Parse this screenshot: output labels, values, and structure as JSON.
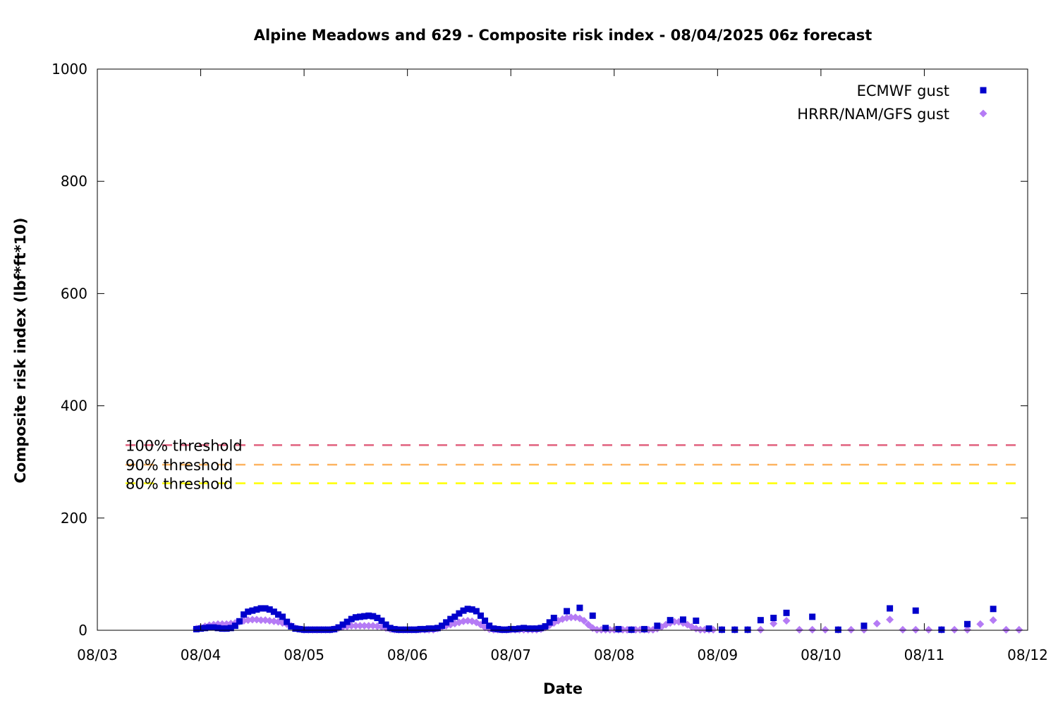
{
  "chart_data": {
    "type": "scatter",
    "title": "Alpine Meadows and 629 - Composite risk index - 08/04/2025 06z forecast",
    "xlabel": "Date",
    "ylabel": "Composite risk index (lbf*ft*10)",
    "x_ticks": [
      "08/03",
      "08/04",
      "08/05",
      "08/06",
      "08/07",
      "08/08",
      "08/09",
      "08/10",
      "08/11",
      "08/12"
    ],
    "xlim": [
      "2025-08-03T00:00",
      "2025-08-12T00:00"
    ],
    "ylim": [
      0,
      1000
    ],
    "y_ticks": [
      0,
      200,
      400,
      600,
      800,
      1000
    ],
    "legend_position": "top-right",
    "grid": false,
    "thresholds": [
      {
        "label": "100% threshold",
        "value": 330,
        "color": "#e0607e"
      },
      {
        "label": "90% threshold",
        "value": 295,
        "color": "#fdb462"
      },
      {
        "label": "80% threshold",
        "value": 262,
        "color": "#ffff00"
      }
    ],
    "series": [
      {
        "name": "ECMWF gust",
        "marker": "square",
        "color": "#0000cc",
        "points": [
          [
            "2025-08-03T23:00",
            2
          ],
          [
            "2025-08-04T00:00",
            3
          ],
          [
            "2025-08-04T01:00",
            4
          ],
          [
            "2025-08-04T02:00",
            5
          ],
          [
            "2025-08-04T03:00",
            5
          ],
          [
            "2025-08-04T04:00",
            4
          ],
          [
            "2025-08-04T05:00",
            3
          ],
          [
            "2025-08-04T06:00",
            3
          ],
          [
            "2025-08-04T07:00",
            4
          ],
          [
            "2025-08-04T08:00",
            8
          ],
          [
            "2025-08-04T09:00",
            16
          ],
          [
            "2025-08-04T10:00",
            28
          ],
          [
            "2025-08-04T11:00",
            33
          ],
          [
            "2025-08-04T12:00",
            35
          ],
          [
            "2025-08-04T13:00",
            37
          ],
          [
            "2025-08-04T14:00",
            39
          ],
          [
            "2025-08-04T15:00",
            39
          ],
          [
            "2025-08-04T16:00",
            37
          ],
          [
            "2025-08-04T17:00",
            33
          ],
          [
            "2025-08-04T18:00",
            28
          ],
          [
            "2025-08-04T19:00",
            24
          ],
          [
            "2025-08-04T20:00",
            15
          ],
          [
            "2025-08-04T21:00",
            7
          ],
          [
            "2025-08-04T22:00",
            3
          ],
          [
            "2025-08-04T23:00",
            2
          ],
          [
            "2025-08-05T00:00",
            1
          ],
          [
            "2025-08-05T01:00",
            1
          ],
          [
            "2025-08-05T02:00",
            1
          ],
          [
            "2025-08-05T03:00",
            1
          ],
          [
            "2025-08-05T04:00",
            1
          ],
          [
            "2025-08-05T05:00",
            1
          ],
          [
            "2025-08-05T06:00",
            1
          ],
          [
            "2025-08-05T07:00",
            2
          ],
          [
            "2025-08-05T08:00",
            5
          ],
          [
            "2025-08-05T09:00",
            10
          ],
          [
            "2025-08-05T10:00",
            15
          ],
          [
            "2025-08-05T11:00",
            20
          ],
          [
            "2025-08-05T12:00",
            23
          ],
          [
            "2025-08-05T13:00",
            24
          ],
          [
            "2025-08-05T14:00",
            25
          ],
          [
            "2025-08-05T15:00",
            26
          ],
          [
            "2025-08-05T16:00",
            25
          ],
          [
            "2025-08-05T17:00",
            22
          ],
          [
            "2025-08-05T18:00",
            17
          ],
          [
            "2025-08-05T19:00",
            10
          ],
          [
            "2025-08-05T20:00",
            4
          ],
          [
            "2025-08-05T21:00",
            2
          ],
          [
            "2025-08-05T22:00",
            1
          ],
          [
            "2025-08-05T23:00",
            1
          ],
          [
            "2025-08-06T00:00",
            1
          ],
          [
            "2025-08-06T01:00",
            1
          ],
          [
            "2025-08-06T02:00",
            1
          ],
          [
            "2025-08-06T03:00",
            2
          ],
          [
            "2025-08-06T04:00",
            2
          ],
          [
            "2025-08-06T05:00",
            3
          ],
          [
            "2025-08-06T06:00",
            3
          ],
          [
            "2025-08-06T07:00",
            4
          ],
          [
            "2025-08-06T08:00",
            8
          ],
          [
            "2025-08-06T09:00",
            14
          ],
          [
            "2025-08-06T10:00",
            20
          ],
          [
            "2025-08-06T11:00",
            24
          ],
          [
            "2025-08-06T12:00",
            30
          ],
          [
            "2025-08-06T13:00",
            35
          ],
          [
            "2025-08-06T14:00",
            38
          ],
          [
            "2025-08-06T15:00",
            37
          ],
          [
            "2025-08-06T16:00",
            34
          ],
          [
            "2025-08-06T17:00",
            26
          ],
          [
            "2025-08-06T18:00",
            17
          ],
          [
            "2025-08-06T19:00",
            8
          ],
          [
            "2025-08-06T20:00",
            3
          ],
          [
            "2025-08-06T21:00",
            2
          ],
          [
            "2025-08-06T22:00",
            1
          ],
          [
            "2025-08-06T23:00",
            1
          ],
          [
            "2025-08-07T00:00",
            2
          ],
          [
            "2025-08-07T01:00",
            2
          ],
          [
            "2025-08-07T02:00",
            3
          ],
          [
            "2025-08-07T03:00",
            4
          ],
          [
            "2025-08-07T04:00",
            3
          ],
          [
            "2025-08-07T05:00",
            3
          ],
          [
            "2025-08-07T06:00",
            3
          ],
          [
            "2025-08-07T07:00",
            4
          ],
          [
            "2025-08-07T08:00",
            7
          ],
          [
            "2025-08-07T09:00",
            14
          ],
          [
            "2025-08-07T10:00",
            22
          ],
          [
            "2025-08-07T13:00",
            34
          ],
          [
            "2025-08-07T16:00",
            40
          ],
          [
            "2025-08-07T19:00",
            26
          ],
          [
            "2025-08-07T22:00",
            4
          ],
          [
            "2025-08-08T01:00",
            2
          ],
          [
            "2025-08-08T04:00",
            1
          ],
          [
            "2025-08-08T07:00",
            2
          ],
          [
            "2025-08-08T10:00",
            8
          ],
          [
            "2025-08-08T13:00",
            18
          ],
          [
            "2025-08-08T16:00",
            19
          ],
          [
            "2025-08-08T19:00",
            17
          ],
          [
            "2025-08-08T22:00",
            3
          ],
          [
            "2025-08-09T01:00",
            1
          ],
          [
            "2025-08-09T04:00",
            1
          ],
          [
            "2025-08-09T07:00",
            1
          ],
          [
            "2025-08-09T10:00",
            18
          ],
          [
            "2025-08-09T13:00",
            22
          ],
          [
            "2025-08-09T16:00",
            31
          ],
          [
            "2025-08-09T22:00",
            24
          ],
          [
            "2025-08-10T04:00",
            1
          ],
          [
            "2025-08-10T10:00",
            8
          ],
          [
            "2025-08-10T16:00",
            39
          ],
          [
            "2025-08-10T22:00",
            35
          ],
          [
            "2025-08-11T04:00",
            1
          ],
          [
            "2025-08-11T10:00",
            11
          ],
          [
            "2025-08-11T16:00",
            38
          ]
        ]
      },
      {
        "name": "HRRR/NAM/GFS gust",
        "marker": "diamond",
        "color": "#b57bf5",
        "points": [
          [
            "2025-08-03T23:00",
            3
          ],
          [
            "2025-08-04T00:00",
            5
          ],
          [
            "2025-08-04T01:00",
            7
          ],
          [
            "2025-08-04T02:00",
            9
          ],
          [
            "2025-08-04T03:00",
            10
          ],
          [
            "2025-08-04T04:00",
            11
          ],
          [
            "2025-08-04T05:00",
            11
          ],
          [
            "2025-08-04T06:00",
            11
          ],
          [
            "2025-08-04T07:00",
            12
          ],
          [
            "2025-08-04T08:00",
            13
          ],
          [
            "2025-08-04T09:00",
            15
          ],
          [
            "2025-08-04T10:00",
            17
          ],
          [
            "2025-08-04T11:00",
            18
          ],
          [
            "2025-08-04T12:00",
            19
          ],
          [
            "2025-08-04T13:00",
            19
          ],
          [
            "2025-08-04T14:00",
            18
          ],
          [
            "2025-08-04T15:00",
            18
          ],
          [
            "2025-08-04T16:00",
            17
          ],
          [
            "2025-08-04T17:00",
            16
          ],
          [
            "2025-08-04T18:00",
            15
          ],
          [
            "2025-08-04T19:00",
            13
          ],
          [
            "2025-08-04T20:00",
            11
          ],
          [
            "2025-08-04T21:00",
            8
          ],
          [
            "2025-08-04T22:00",
            4
          ],
          [
            "2025-08-04T23:00",
            2
          ],
          [
            "2025-08-05T00:00",
            1
          ],
          [
            "2025-08-05T01:00",
            1
          ],
          [
            "2025-08-05T02:00",
            1
          ],
          [
            "2025-08-05T03:00",
            1
          ],
          [
            "2025-08-05T04:00",
            1
          ],
          [
            "2025-08-05T05:00",
            1
          ],
          [
            "2025-08-05T06:00",
            1
          ],
          [
            "2025-08-05T07:00",
            2
          ],
          [
            "2025-08-05T08:00",
            4
          ],
          [
            "2025-08-05T09:00",
            6
          ],
          [
            "2025-08-05T10:00",
            7
          ],
          [
            "2025-08-05T11:00",
            8
          ],
          [
            "2025-08-05T12:00",
            8
          ],
          [
            "2025-08-05T13:00",
            8
          ],
          [
            "2025-08-05T14:00",
            8
          ],
          [
            "2025-08-05T15:00",
            8
          ],
          [
            "2025-08-05T16:00",
            8
          ],
          [
            "2025-08-05T17:00",
            7
          ],
          [
            "2025-08-05T18:00",
            6
          ],
          [
            "2025-08-05T19:00",
            4
          ],
          [
            "2025-08-05T20:00",
            2
          ],
          [
            "2025-08-05T21:00",
            1
          ],
          [
            "2025-08-05T22:00",
            1
          ],
          [
            "2025-08-05T23:00",
            1
          ],
          [
            "2025-08-06T00:00",
            1
          ],
          [
            "2025-08-06T01:00",
            1
          ],
          [
            "2025-08-06T02:00",
            1
          ],
          [
            "2025-08-06T03:00",
            1
          ],
          [
            "2025-08-06T04:00",
            1
          ],
          [
            "2025-08-06T05:00",
            1
          ],
          [
            "2025-08-06T06:00",
            1
          ],
          [
            "2025-08-06T07:00",
            3
          ],
          [
            "2025-08-06T08:00",
            6
          ],
          [
            "2025-08-06T09:00",
            8
          ],
          [
            "2025-08-06T10:00",
            10
          ],
          [
            "2025-08-06T11:00",
            12
          ],
          [
            "2025-08-06T12:00",
            14
          ],
          [
            "2025-08-06T13:00",
            16
          ],
          [
            "2025-08-06T14:00",
            17
          ],
          [
            "2025-08-06T15:00",
            16
          ],
          [
            "2025-08-06T16:00",
            14
          ],
          [
            "2025-08-06T17:00",
            10
          ],
          [
            "2025-08-06T18:00",
            5
          ],
          [
            "2025-08-06T19:00",
            2
          ],
          [
            "2025-08-06T20:00",
            1
          ],
          [
            "2025-08-06T21:00",
            1
          ],
          [
            "2025-08-06T22:00",
            1
          ],
          [
            "2025-08-06T23:00",
            1
          ],
          [
            "2025-08-07T00:00",
            1
          ],
          [
            "2025-08-07T01:00",
            1
          ],
          [
            "2025-08-07T02:00",
            1
          ],
          [
            "2025-08-07T03:00",
            1
          ],
          [
            "2025-08-07T04:00",
            1
          ],
          [
            "2025-08-07T05:00",
            1
          ],
          [
            "2025-08-07T06:00",
            1
          ],
          [
            "2025-08-07T07:00",
            2
          ],
          [
            "2025-08-07T08:00",
            5
          ],
          [
            "2025-08-07T09:00",
            9
          ],
          [
            "2025-08-07T10:00",
            13
          ],
          [
            "2025-08-07T11:00",
            17
          ],
          [
            "2025-08-07T12:00",
            20
          ],
          [
            "2025-08-07T13:00",
            22
          ],
          [
            "2025-08-07T14:00",
            23
          ],
          [
            "2025-08-07T15:00",
            23
          ],
          [
            "2025-08-07T16:00",
            21
          ],
          [
            "2025-08-07T17:00",
            17
          ],
          [
            "2025-08-07T18:00",
            10
          ],
          [
            "2025-08-07T19:00",
            4
          ],
          [
            "2025-08-07T20:00",
            1
          ],
          [
            "2025-08-07T21:00",
            1
          ],
          [
            "2025-08-07T22:00",
            1
          ],
          [
            "2025-08-07T23:00",
            1
          ],
          [
            "2025-08-08T00:00",
            1
          ],
          [
            "2025-08-08T01:00",
            1
          ],
          [
            "2025-08-08T02:00",
            1
          ],
          [
            "2025-08-08T03:00",
            1
          ],
          [
            "2025-08-08T04:00",
            1
          ],
          [
            "2025-08-08T05:00",
            1
          ],
          [
            "2025-08-08T06:00",
            1
          ],
          [
            "2025-08-08T07:00",
            1
          ],
          [
            "2025-08-08T08:00",
            1
          ],
          [
            "2025-08-08T09:00",
            1
          ],
          [
            "2025-08-08T10:00",
            3
          ],
          [
            "2025-08-08T11:00",
            6
          ],
          [
            "2025-08-08T12:00",
            10
          ],
          [
            "2025-08-08T13:00",
            13
          ],
          [
            "2025-08-08T14:00",
            15
          ],
          [
            "2025-08-08T15:00",
            15
          ],
          [
            "2025-08-08T16:00",
            13
          ],
          [
            "2025-08-08T17:00",
            10
          ],
          [
            "2025-08-08T18:00",
            6
          ],
          [
            "2025-08-08T19:00",
            3
          ],
          [
            "2025-08-08T20:00",
            1
          ],
          [
            "2025-08-08T21:00",
            1
          ],
          [
            "2025-08-08T22:00",
            1
          ],
          [
            "2025-08-08T23:00",
            1
          ],
          [
            "2025-08-09T01:00",
            1
          ],
          [
            "2025-08-09T04:00",
            1
          ],
          [
            "2025-08-09T07:00",
            1
          ],
          [
            "2025-08-09T10:00",
            1
          ],
          [
            "2025-08-09T13:00",
            12
          ],
          [
            "2025-08-09T16:00",
            17
          ],
          [
            "2025-08-09T19:00",
            1
          ],
          [
            "2025-08-09T22:00",
            1
          ],
          [
            "2025-08-10T01:00",
            1
          ],
          [
            "2025-08-10T04:00",
            1
          ],
          [
            "2025-08-10T07:00",
            1
          ],
          [
            "2025-08-10T10:00",
            1
          ],
          [
            "2025-08-10T13:00",
            12
          ],
          [
            "2025-08-10T16:00",
            19
          ],
          [
            "2025-08-10T19:00",
            1
          ],
          [
            "2025-08-10T22:00",
            1
          ],
          [
            "2025-08-11T01:00",
            1
          ],
          [
            "2025-08-11T04:00",
            1
          ],
          [
            "2025-08-11T07:00",
            1
          ],
          [
            "2025-08-11T10:00",
            1
          ],
          [
            "2025-08-11T13:00",
            11
          ],
          [
            "2025-08-11T16:00",
            18
          ],
          [
            "2025-08-11T19:00",
            1
          ],
          [
            "2025-08-11T22:00",
            1
          ]
        ]
      }
    ]
  }
}
